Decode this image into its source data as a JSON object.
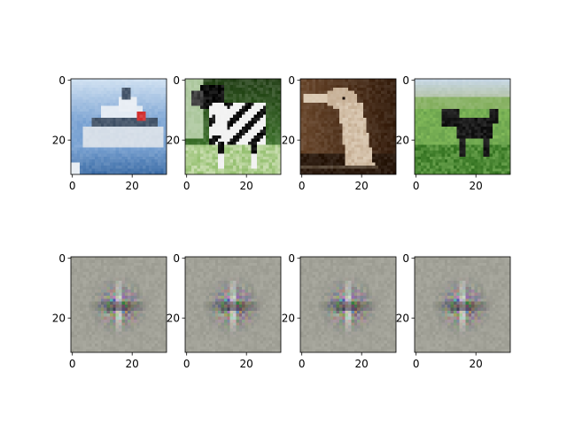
{
  "figure": {
    "rows": 2,
    "cols": 4
  },
  "chart_data": [
    {
      "type": "image",
      "row": 0,
      "col": 0,
      "content": "cargo ship on water",
      "palette": [
        "#7fa6d4",
        "#cfe0f1",
        "#e9eef4",
        "#4a5a6e",
        "#d43a3a"
      ],
      "xlim": [
        0,
        31
      ],
      "ylim": [
        31,
        0
      ],
      "xticks": [
        "0",
        "20"
      ],
      "yticks": [
        "0",
        "20"
      ]
    },
    {
      "type": "image",
      "row": 0,
      "col": 1,
      "content": "black and white dog on grass",
      "palette": [
        "#4f8a3c",
        "#111111",
        "#f2f2f2",
        "#9cc47a",
        "#2e4a22"
      ],
      "xlim": [
        0,
        31
      ],
      "ylim": [
        31,
        0
      ],
      "xticks": [
        "0",
        "20"
      ],
      "yticks": [
        "0",
        "20"
      ]
    },
    {
      "type": "image",
      "row": 0,
      "col": 2,
      "content": "ostrich head close-up",
      "palette": [
        "#3b2414",
        "#6b4a30",
        "#c9b39a",
        "#e6d8c3",
        "#1e140c"
      ],
      "xlim": [
        0,
        31
      ],
      "ylim": [
        31,
        0
      ],
      "xticks": [
        "0",
        "20"
      ],
      "yticks": [
        "0",
        "20"
      ]
    },
    {
      "type": "image",
      "row": 0,
      "col": 3,
      "content": "black dog on green field",
      "palette": [
        "#5d9a3f",
        "#8cbf66",
        "#c7d7e3",
        "#1a1a1a",
        "#3f7a2e"
      ],
      "xlim": [
        0,
        31
      ],
      "ylim": [
        31,
        0
      ],
      "xticks": [
        "0",
        "20"
      ],
      "yticks": [
        "0",
        "20"
      ]
    },
    {
      "type": "image",
      "row": 1,
      "col": 0,
      "content": "gray noisy reconstruction",
      "palette": [
        "#9a9a90",
        "#b8b8ae",
        "#6e6e66",
        "#ffffff",
        "#c24a4a"
      ],
      "xlim": [
        0,
        31
      ],
      "ylim": [
        31,
        0
      ],
      "xticks": [
        "0",
        "20"
      ],
      "yticks": [
        "0",
        "20"
      ]
    },
    {
      "type": "image",
      "row": 1,
      "col": 1,
      "content": "gray noisy reconstruction",
      "palette": [
        "#9a9a90",
        "#b8b8ae",
        "#6e6e66",
        "#ffffff",
        "#c24a4a"
      ],
      "xlim": [
        0,
        31
      ],
      "ylim": [
        31,
        0
      ],
      "xticks": [
        "0",
        "20"
      ],
      "yticks": [
        "0",
        "20"
      ]
    },
    {
      "type": "image",
      "row": 1,
      "col": 2,
      "content": "gray noisy reconstruction",
      "palette": [
        "#9a9a90",
        "#b8b8ae",
        "#6e6e66",
        "#ffffff",
        "#c24a4a"
      ],
      "xlim": [
        0,
        31
      ],
      "ylim": [
        31,
        0
      ],
      "xticks": [
        "0",
        "20"
      ],
      "yticks": [
        "0",
        "20"
      ]
    },
    {
      "type": "image",
      "row": 1,
      "col": 3,
      "content": "gray noisy reconstruction",
      "palette": [
        "#9a9a90",
        "#b8b8ae",
        "#6e6e66",
        "#ffffff",
        "#c24a4a"
      ],
      "xlim": [
        0,
        31
      ],
      "ylim": [
        31,
        0
      ],
      "xticks": [
        "0",
        "20"
      ],
      "yticks": [
        "0",
        "20"
      ]
    }
  ]
}
